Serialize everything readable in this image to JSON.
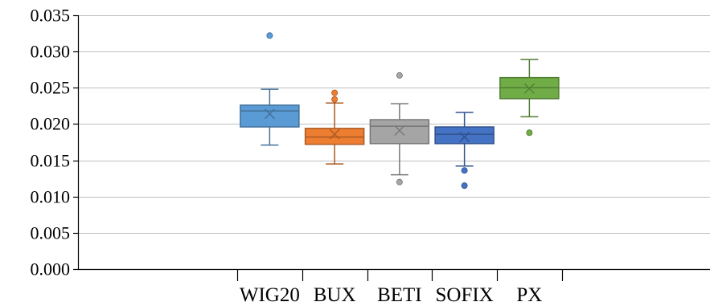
{
  "chart_data": {
    "type": "box",
    "title": "",
    "xlabel": "",
    "ylabel": "",
    "ylim": [
      0,
      0.035
    ],
    "yticks": [
      "0.000",
      "0.005",
      "0.010",
      "0.015",
      "0.020",
      "0.025",
      "0.030",
      "0.035"
    ],
    "ytick_values": [
      0,
      0.005,
      0.01,
      0.015,
      0.02,
      0.025,
      0.03,
      0.035
    ],
    "grid": true,
    "legend": "none",
    "categories": [
      "WIG20",
      "BUX",
      "BETI",
      "SOFIX",
      "PX"
    ],
    "series": [
      {
        "category": "WIG20",
        "color": "#5b9bd5",
        "whisker_low": 0.0171,
        "q1": 0.0196,
        "median": 0.0218,
        "q3": 0.0226,
        "whisker_high": 0.0248,
        "mean": 0.0214,
        "outliers": [
          0.0322
        ]
      },
      {
        "category": "BUX",
        "color": "#ed7d31",
        "whisker_low": 0.0145,
        "q1": 0.0172,
        "median": 0.0182,
        "q3": 0.0194,
        "whisker_high": 0.0229,
        "mean": 0.0186,
        "outliers": [
          0.0234,
          0.0243
        ]
      },
      {
        "category": "BETI",
        "color": "#a5a5a5",
        "whisker_low": 0.013,
        "q1": 0.0173,
        "median": 0.0197,
        "q3": 0.0206,
        "whisker_high": 0.0228,
        "mean": 0.0191,
        "outliers": [
          0.012,
          0.0267
        ]
      },
      {
        "category": "SOFIX",
        "color": "#4472c4",
        "whisker_low": 0.0142,
        "q1": 0.0173,
        "median": 0.0186,
        "q3": 0.0196,
        "whisker_high": 0.0216,
        "mean": 0.0182,
        "outliers": [
          0.0136,
          0.0115
        ]
      },
      {
        "category": "PX",
        "color": "#70ad47",
        "whisker_low": 0.021,
        "q1": 0.0235,
        "median": 0.025,
        "q3": 0.0264,
        "whisker_high": 0.0289,
        "mean": 0.0249,
        "outliers": [
          0.0188
        ]
      }
    ]
  }
}
